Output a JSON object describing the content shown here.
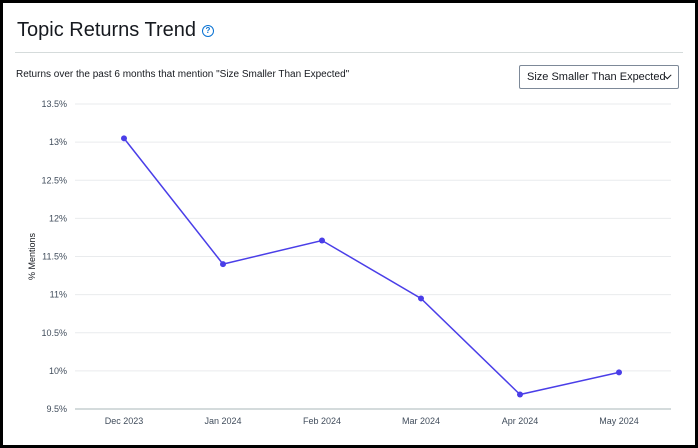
{
  "header": {
    "title": "Topic Returns Trend",
    "help_icon": "help-circle-icon",
    "subtitle": "Returns over the past 6 months that mention \"Size Smaller Than Expected\""
  },
  "topic_select": {
    "selected": "Size Smaller Than Expected",
    "icon": "chevron-down-icon"
  },
  "colors": {
    "line": "#4a3ee8",
    "accent": "#0972d3",
    "grid": "#e9ebed"
  },
  "chart_data": {
    "type": "line",
    "ylabel": "% Mentions",
    "xlabel": "",
    "categories": [
      "Dec 2023",
      "Jan 2024",
      "Feb 2024",
      "Mar 2024",
      "Apr 2024",
      "May 2024"
    ],
    "series": [
      {
        "values": [
          13.05,
          11.4,
          11.71,
          10.95,
          9.69,
          9.98
        ]
      }
    ],
    "ylim": [
      9.5,
      13.5
    ],
    "yticks": [
      9.5,
      10,
      10.5,
      11,
      11.5,
      12,
      12.5,
      13,
      13.5
    ],
    "ytick_labels": [
      "9.5%",
      "10%",
      "10.5%",
      "11%",
      "11.5%",
      "12%",
      "12.5%",
      "13%",
      "13.5%"
    ],
    "grid": true,
    "legend": "none"
  }
}
